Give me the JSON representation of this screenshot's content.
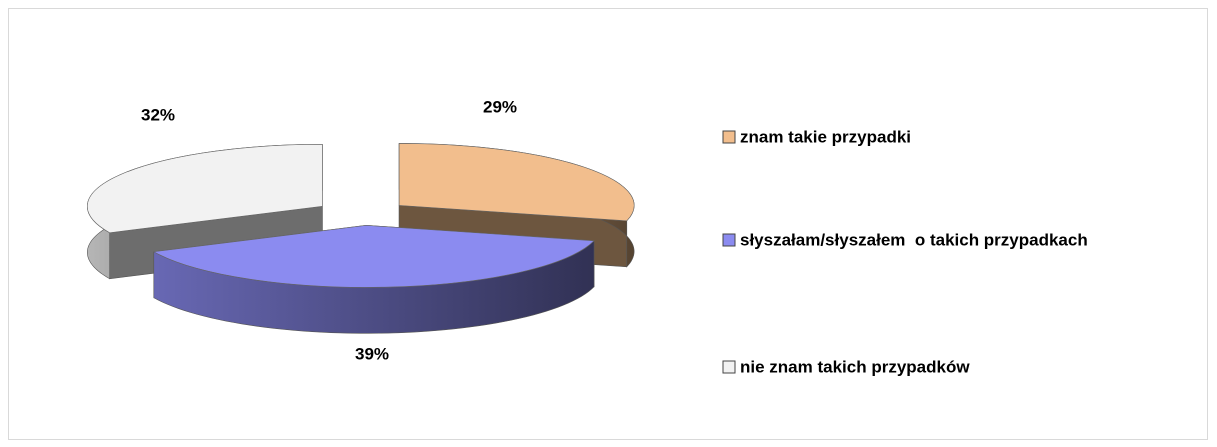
{
  "chart_data": {
    "type": "pie3d",
    "categories": [
      "znam takie przypadki",
      "słyszałam/słyszałem  o takich przypadkach",
      "nie znam takich przypadków"
    ],
    "values": [
      29,
      39,
      32
    ],
    "value_labels": [
      "29%",
      "39%",
      "32%"
    ],
    "colors": [
      "#f2be8d",
      "#8b8bf0",
      "#f2f2f2"
    ],
    "legend": "right"
  }
}
